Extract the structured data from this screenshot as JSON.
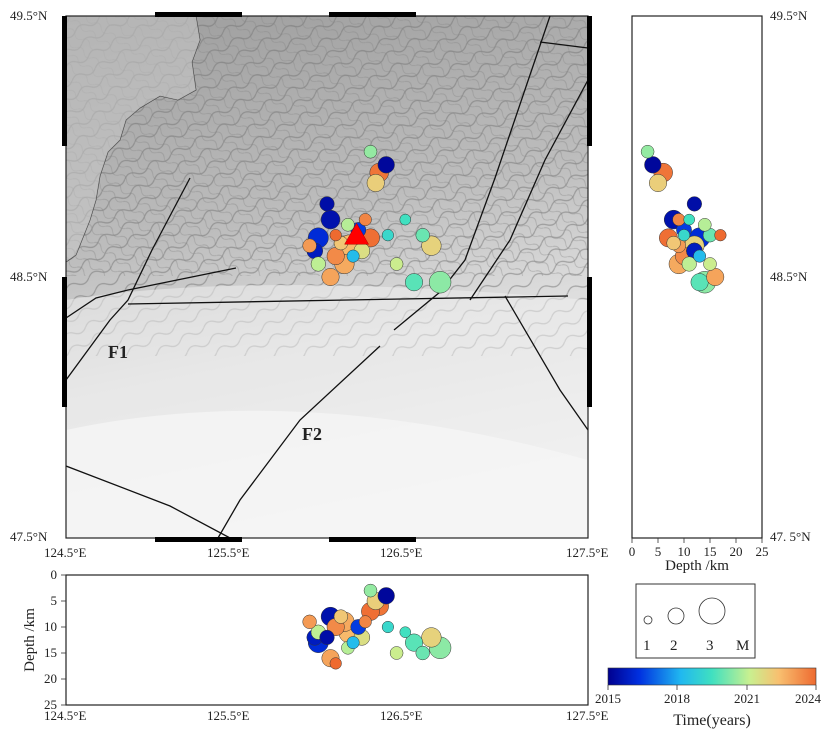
{
  "map": {
    "lon_ticks": [
      "124.5°E",
      "125.5°E",
      "126.5°E",
      "127.5°E"
    ],
    "lat_ticks": [
      "49.5°N",
      "48.5°N",
      "47.5°N"
    ],
    "fault_labels": [
      "F1",
      "F2"
    ]
  },
  "right_panel": {
    "lat_ticks": [
      "49.5°N",
      "48.5°N",
      "47. 5°N"
    ],
    "depth_ticks": [
      "0",
      "5",
      "10",
      "15",
      "20",
      "25"
    ],
    "xlabel": "Depth /km"
  },
  "bottom_panel": {
    "depth_ticks": [
      "0",
      "5",
      "10",
      "15",
      "20",
      "25"
    ],
    "lon_ticks": [
      "124.5°E",
      "125.5°E",
      "126.5°E",
      "127.5°E"
    ],
    "ylabel": "Depth /km"
  },
  "magnitude_legend": {
    "labels": [
      "1",
      "2",
      "3"
    ],
    "unit": "M",
    "values": [
      1,
      2,
      3
    ]
  },
  "colorbar": {
    "ticks": [
      "2015",
      "2018",
      "2021",
      "2024"
    ],
    "label": "Time(years)",
    "range": [
      2015,
      2024
    ]
  },
  "colors": {
    "low": "#00008f",
    "mid": "#40e0c0",
    "high": "#ee6a30",
    "fault": "#111111",
    "epicenter": "#ff0000"
  },
  "chart_data": {
    "type": "scatter",
    "lon_range": [
      124.5,
      127.5
    ],
    "lat_range": [
      47.5,
      49.5
    ],
    "depth_range": [
      0,
      25
    ],
    "x_field": "lon",
    "y_field": "lat",
    "size_field": "mag",
    "color_field": "year",
    "events": [
      {
        "lon": 126.13,
        "lat": 48.62,
        "depth": 11,
        "mag": 2.6,
        "year": 2022.5
      },
      {
        "lon": 126.02,
        "lat": 48.72,
        "depth": 8,
        "mag": 2.2,
        "year": 2015.5
      },
      {
        "lon": 125.95,
        "lat": 48.65,
        "depth": 13,
        "mag": 2.4,
        "year": 2016.2
      },
      {
        "lon": 126.05,
        "lat": 48.58,
        "depth": 10,
        "mag": 2.0,
        "year": 2023.4
      },
      {
        "lon": 126.1,
        "lat": 48.55,
        "depth": 9,
        "mag": 2.3,
        "year": 2022.8
      },
      {
        "lon": 126.2,
        "lat": 48.6,
        "depth": 12,
        "mag": 1.8,
        "year": 2021.6
      },
      {
        "lon": 126.25,
        "lat": 48.65,
        "depth": 7,
        "mag": 2.1,
        "year": 2023.9
      },
      {
        "lon": 126.3,
        "lat": 48.9,
        "depth": 6,
        "mag": 2.2,
        "year": 2023.8
      },
      {
        "lon": 126.28,
        "lat": 48.86,
        "depth": 5,
        "mag": 2.0,
        "year": 2022.0
      },
      {
        "lon": 126.34,
        "lat": 48.93,
        "depth": 4,
        "mag": 1.9,
        "year": 2015.2
      },
      {
        "lon": 126.25,
        "lat": 48.98,
        "depth": 3,
        "mag": 1.4,
        "year": 2020.5
      },
      {
        "lon": 126.65,
        "lat": 48.48,
        "depth": 14,
        "mag": 2.6,
        "year": 2020.4
      },
      {
        "lon": 126.6,
        "lat": 48.62,
        "depth": 12,
        "mag": 2.3,
        "year": 2021.9
      },
      {
        "lon": 126.55,
        "lat": 48.66,
        "depth": 15,
        "mag": 1.5,
        "year": 2020.0
      },
      {
        "lon": 126.5,
        "lat": 48.48,
        "depth": 13,
        "mag": 2.0,
        "year": 2019.8
      },
      {
        "lon": 125.95,
        "lat": 48.55,
        "depth": 11,
        "mag": 1.6,
        "year": 2021.0
      },
      {
        "lon": 125.9,
        "lat": 48.62,
        "depth": 9,
        "mag": 1.5,
        "year": 2023.1
      },
      {
        "lon": 126.02,
        "lat": 48.5,
        "depth": 16,
        "mag": 2.0,
        "year": 2022.9
      },
      {
        "lon": 126.18,
        "lat": 48.68,
        "depth": 10,
        "mag": 1.7,
        "year": 2016.5
      },
      {
        "lon": 126.0,
        "lat": 48.78,
        "depth": 12,
        "mag": 1.6,
        "year": 2015.4
      },
      {
        "lon": 126.12,
        "lat": 48.7,
        "depth": 14,
        "mag": 1.4,
        "year": 2020.9
      },
      {
        "lon": 126.08,
        "lat": 48.63,
        "depth": 8,
        "mag": 1.5,
        "year": 2022.2
      },
      {
        "lon": 126.15,
        "lat": 48.58,
        "depth": 13,
        "mag": 1.3,
        "year": 2018.3
      },
      {
        "lon": 126.35,
        "lat": 48.66,
        "depth": 10,
        "mag": 1.2,
        "year": 2019.2
      },
      {
        "lon": 125.93,
        "lat": 48.6,
        "depth": 12,
        "mag": 1.8,
        "year": 2015.8
      },
      {
        "lon": 126.22,
        "lat": 48.72,
        "depth": 9,
        "mag": 1.3,
        "year": 2023.5
      },
      {
        "lon": 126.4,
        "lat": 48.55,
        "depth": 15,
        "mag": 1.4,
        "year": 2021.2
      },
      {
        "lon": 126.05,
        "lat": 48.66,
        "depth": 17,
        "mag": 1.2,
        "year": 2024.0
      },
      {
        "lon": 126.45,
        "lat": 48.72,
        "depth": 11,
        "mag": 1.1,
        "year": 2019.5
      }
    ],
    "mainshock": {
      "lon": 126.17,
      "lat": 48.66
    }
  }
}
